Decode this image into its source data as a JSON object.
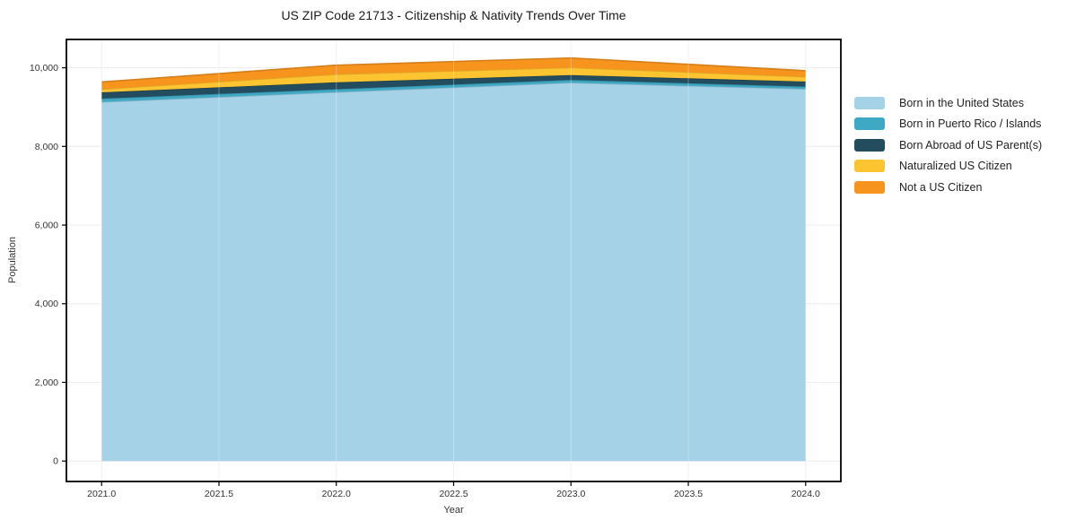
{
  "title": "US ZIP Code 21713 - Citizenship & Nativity Trends Over Time",
  "chart_data": {
    "type": "area",
    "stacked": true,
    "title": "US ZIP Code 21713 - Citizenship & Nativity Trends Over Time",
    "xlabel": "Year",
    "ylabel": "Population",
    "x": [
      2021,
      2022,
      2023,
      2024
    ],
    "series": [
      {
        "name": "Born in the United States",
        "color": "#A6D2E7",
        "values": [
          9130,
          9380,
          9620,
          9460
        ]
      },
      {
        "name": "Born in Puerto Rico / Islands",
        "color": "#3FA9C5",
        "values": [
          85,
          75,
          70,
          60
        ]
      },
      {
        "name": "Born Abroad of US Parent(s)",
        "color": "#234C5E",
        "values": [
          160,
          175,
          125,
          130
        ]
      },
      {
        "name": "Naturalized US Citizen",
        "color": "#FCC430",
        "values": [
          80,
          205,
          190,
          120
        ]
      },
      {
        "name": "Not a US Citizen",
        "color": "#F7941E",
        "values": [
          185,
          230,
          245,
          155
        ]
      }
    ],
    "totals": [
      9640,
      10065,
      10250,
      9925
    ],
    "x_ticks": [
      2021.0,
      2021.5,
      2022.0,
      2022.5,
      2023.0,
      2023.5,
      2024.0
    ],
    "x_tick_labels": [
      "2021.0",
      "2021.5",
      "2022.0",
      "2022.5",
      "2023.0",
      "2023.5",
      "2024.0"
    ],
    "y_ticks": [
      0,
      2000,
      4000,
      6000,
      8000,
      10000
    ],
    "y_tick_labels": [
      "0",
      "2,000",
      "4,000",
      "6,000",
      "8,000",
      "10,000"
    ],
    "xlim": [
      2020.85,
      2024.15
    ],
    "ylim": [
      -520,
      10720
    ],
    "grid": true,
    "legend_position": "right",
    "colors": {
      "frame": "#000000",
      "grid": "#ececec",
      "tick_text": "#333333",
      "background": "#ffffff"
    }
  }
}
